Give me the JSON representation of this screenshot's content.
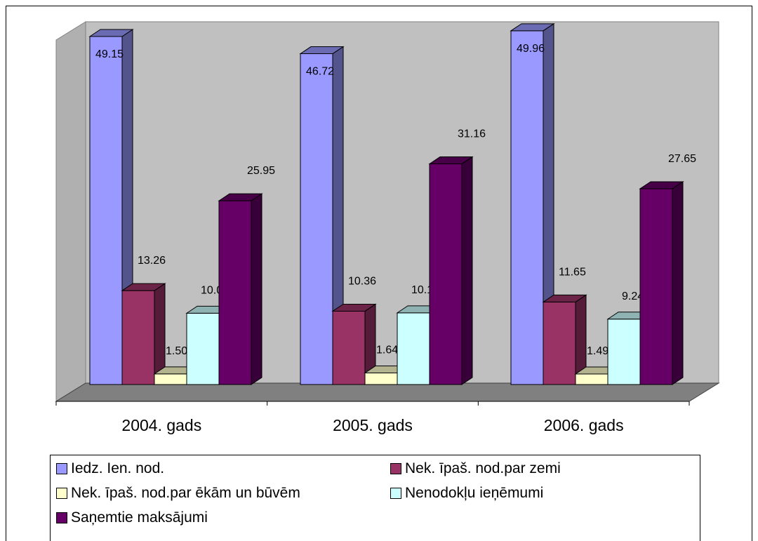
{
  "chart_data": {
    "type": "bar",
    "categories": [
      "2004. gads",
      "2005. gads",
      "2006. gads"
    ],
    "series": [
      {
        "name": "Iedz. Ien. nod.",
        "values": [
          49.15,
          46.72,
          49.96
        ],
        "labels": [
          "49.15",
          "46.72",
          "49.96"
        ],
        "color": "#9999ff"
      },
      {
        "name": "Nek. īpaš. nod.par zemi",
        "values": [
          13.26,
          10.36,
          11.65
        ],
        "labels": [
          "13.26",
          "10.36",
          "11.65"
        ],
        "color": "#993366"
      },
      {
        "name": "Nek. īpaš. nod.par ēkām un būvēm",
        "values": [
          1.5,
          1.64,
          1.49
        ],
        "labels": [
          "1.50",
          "1.64",
          "1.49"
        ],
        "color": "#ffffcc"
      },
      {
        "name": "Nenodokļu ieņēmumi",
        "values": [
          10.07,
          10.12,
          9.24
        ],
        "labels": [
          "10.07",
          "10.12",
          "9.24"
        ],
        "color": "#ccffff"
      },
      {
        "name": "Saņemtie maksājumi",
        "values": [
          25.95,
          31.16,
          27.65
        ],
        "labels": [
          "25.95",
          "31.16",
          "27.65"
        ],
        "color": "#660066"
      }
    ],
    "ylim": [
      0,
      50
    ],
    "grid": false,
    "legend": "bottom",
    "style": "3d-clustered-column",
    "wall_color": "#c0c0c0",
    "floor_color": "#808080"
  }
}
